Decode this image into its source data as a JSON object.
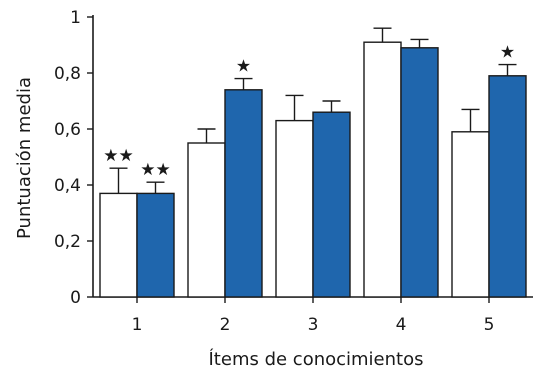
{
  "chart_data": {
    "type": "bar",
    "title": "",
    "xlabel": "Ítems de conocimientos",
    "ylabel": "Puntuación media",
    "ylim": [
      0,
      1
    ],
    "yticks": [
      0,
      0.2,
      0.4,
      0.6,
      0.8,
      1
    ],
    "ytick_labels": [
      "0",
      "0,2",
      "0,4",
      "0,6",
      "0,8",
      "1"
    ],
    "categories": [
      "1",
      "2",
      "3",
      "4",
      "5"
    ],
    "grid": false,
    "series": [
      {
        "color": "#ffffff",
        "values": [
          0.37,
          0.55,
          0.63,
          0.91,
          0.59
        ],
        "errors": [
          0.09,
          0.05,
          0.09,
          0.05,
          0.08
        ],
        "annotations": [
          "★★",
          "",
          "",
          "",
          ""
        ]
      },
      {
        "color": "#1f66ad",
        "values": [
          0.37,
          0.74,
          0.66,
          0.89,
          0.79
        ],
        "errors": [
          0.04,
          0.04,
          0.04,
          0.03,
          0.04
        ],
        "annotations": [
          "★★",
          "★",
          "",
          "",
          "★"
        ]
      }
    ]
  }
}
